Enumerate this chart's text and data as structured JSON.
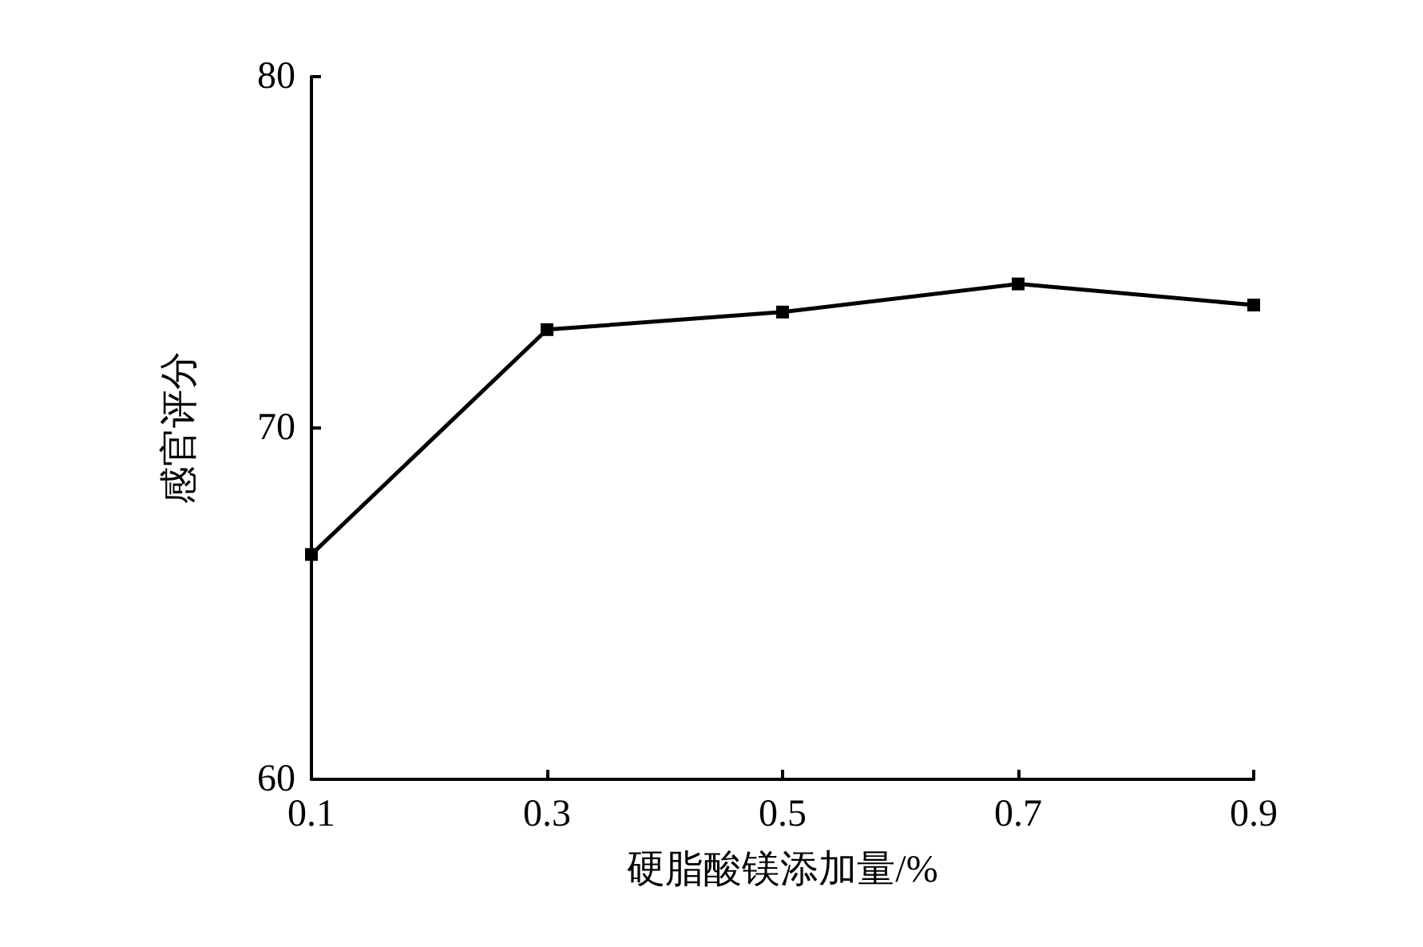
{
  "chart_data": {
    "type": "line",
    "xlabel": "硬脂酸镁添加量/%",
    "ylabel": "感官评分",
    "x": [
      0.1,
      0.3,
      0.5,
      0.7,
      0.9
    ],
    "series": [
      {
        "color": "#000000",
        "values": [
          66.4,
          72.8,
          73.3,
          74.1,
          73.5
        ]
      }
    ],
    "xlim": [
      0.1,
      0.9
    ],
    "xticks": [
      0.1,
      0.3,
      0.5,
      0.7,
      0.9
    ],
    "ylim": [
      60,
      80
    ],
    "yticks": [
      60,
      70,
      80
    ],
    "grid": false,
    "marker": "square",
    "line_style": "solid"
  }
}
